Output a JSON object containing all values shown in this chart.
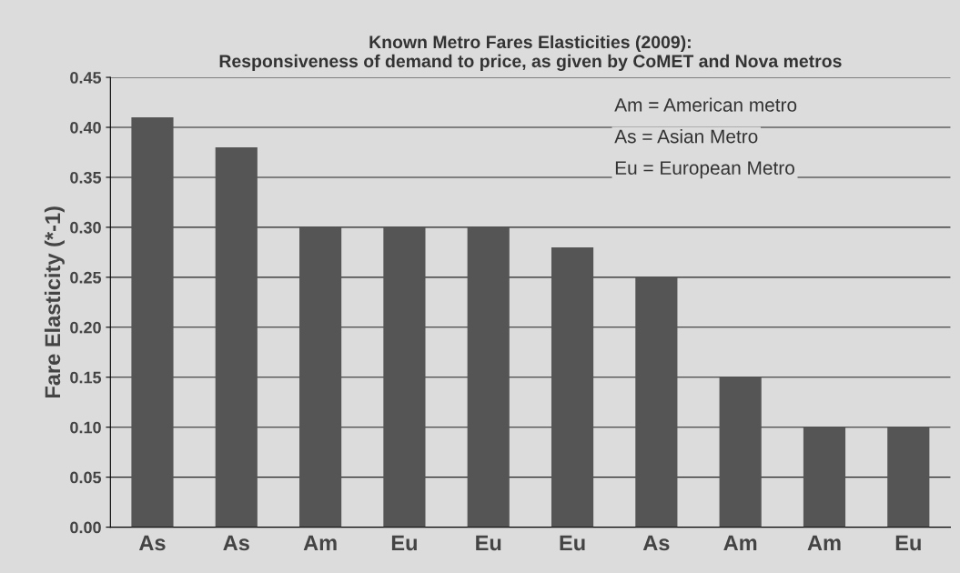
{
  "chart_data": {
    "type": "bar",
    "title": "Known Metro Fares Elasticities (2009):\nResponsiveness of demand to price, as given by CoMET and Nova metros",
    "ylabel": "Fare Elasticity (*-1)",
    "categories": [
      "As",
      "As",
      "Am",
      "Eu",
      "Eu",
      "Eu",
      "As",
      "Am",
      "Am",
      "Eu"
    ],
    "values": [
      0.41,
      0.38,
      0.3,
      0.3,
      0.3,
      0.28,
      0.25,
      0.15,
      0.1,
      0.1
    ],
    "color": "#555555",
    "ylim": [
      0,
      0.45
    ],
    "yticks": [
      {
        "value": 0,
        "label": "0.00"
      },
      {
        "value": 0.05,
        "label": "0.05"
      },
      {
        "value": 0.1,
        "label": "0.10"
      },
      {
        "value": 0.15,
        "label": "0.15"
      },
      {
        "value": 0.2,
        "label": "0.20"
      },
      {
        "value": 0.25,
        "label": "0.25"
      },
      {
        "value": 0.3,
        "label": "0.30"
      },
      {
        "value": 0.35,
        "label": "0.35"
      },
      {
        "value": 0.4,
        "label": "0.40"
      },
      {
        "value": 0.45,
        "label": "0.45"
      }
    ],
    "grid": "y",
    "annotations": [
      "Am = American metro",
      "As = Asian Metro",
      "Eu = European Metro"
    ]
  }
}
